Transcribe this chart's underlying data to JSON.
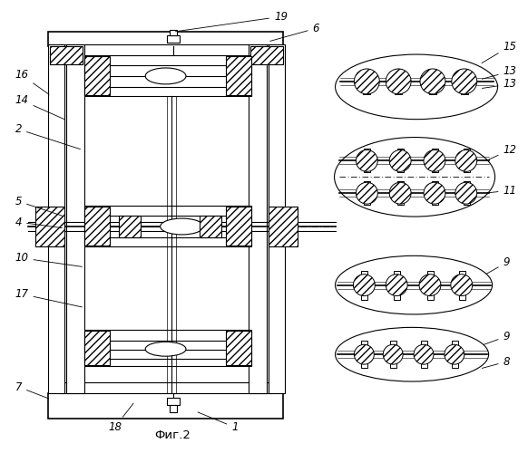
{
  "title": "Фиг.2",
  "bg_color": "#ffffff",
  "line_color": "#000000",
  "fig_width": 5.82,
  "fig_height": 5.0
}
